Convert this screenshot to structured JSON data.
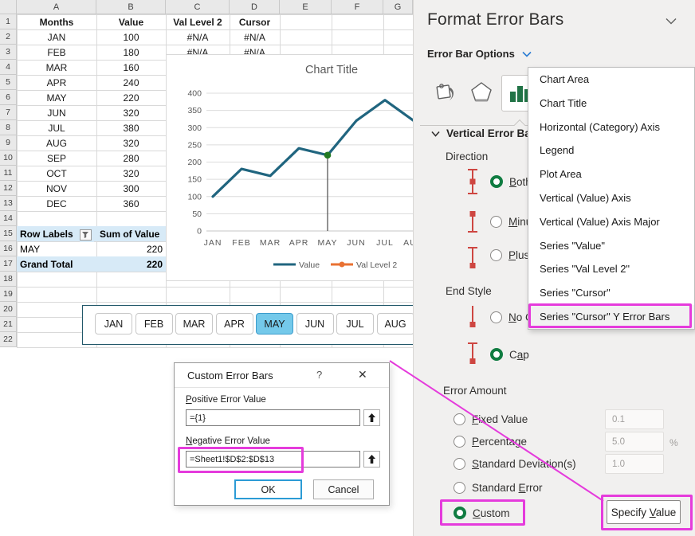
{
  "sheet": {
    "columns": [
      "A",
      "B",
      "C",
      "D",
      "E",
      "F",
      "G"
    ],
    "visible_row_count": 22,
    "table": {
      "headers": [
        "Months",
        "Value",
        "Val Level 2",
        "Cursor"
      ],
      "rows": [
        {
          "month": "JAN",
          "value": "100",
          "val2": "#N/A",
          "cursor": "#N/A"
        },
        {
          "month": "FEB",
          "value": "180",
          "val2": "#N/A",
          "cursor": "#N/A"
        },
        {
          "month": "MAR",
          "value": "160"
        },
        {
          "month": "APR",
          "value": "240"
        },
        {
          "month": "MAY",
          "value": "220"
        },
        {
          "month": "JUN",
          "value": "320"
        },
        {
          "month": "JUL",
          "value": "380"
        },
        {
          "month": "AUG",
          "value": "320"
        },
        {
          "month": "SEP",
          "value": "280"
        },
        {
          "month": "OCT",
          "value": "320"
        },
        {
          "month": "NOV",
          "value": "300"
        },
        {
          "month": "DEC",
          "value": "360"
        }
      ]
    },
    "pivot": {
      "col1_header": "Row Labels",
      "col2_header": "Sum of Value",
      "row_label": "MAY",
      "row_value": "220",
      "total_label": "Grand Total",
      "total_value": "220"
    }
  },
  "chart_data": {
    "type": "line",
    "title": "Chart Title",
    "categories": [
      "JAN",
      "FEB",
      "MAR",
      "APR",
      "MAY",
      "JUN",
      "JUL",
      "AUG"
    ],
    "series": [
      {
        "name": "Value",
        "color": "#20657F",
        "values": [
          100,
          180,
          160,
          240,
          220,
          320,
          380,
          320
        ]
      },
      {
        "name": "Val Level 2",
        "color": "#E97132",
        "values": []
      },
      {
        "name": "Cursor",
        "color": "#237A23",
        "points": [
          {
            "category": "MAY",
            "value": 220
          }
        ],
        "error_bar_to": 0
      }
    ],
    "ylim": [
      0,
      400
    ],
    "ytick_step": 50,
    "grid": true,
    "legend_position": "bottom"
  },
  "slicer": {
    "items": [
      "JAN",
      "FEB",
      "MAR",
      "APR",
      "MAY",
      "JUN",
      "JUL",
      "AUG"
    ],
    "selected": "MAY"
  },
  "dropdown": {
    "items": [
      "Chart Area",
      "Chart Title",
      "Horizontal (Category) Axis",
      "Legend",
      "Plot Area",
      "Vertical (Value) Axis",
      "Vertical (Value) Axis Major",
      "Series \"Value\"",
      "Series \"Val Level 2\"",
      "Series \"Cursor\"",
      "Series \"Cursor\" Y Error Bars"
    ],
    "highlighted_index": 10
  },
  "panel": {
    "title": "Format Error Bars",
    "options_label": "Error Bar Options",
    "section": "Vertical Error Bar",
    "direction_label": "Direction",
    "direction_options": [
      {
        "label": "Both",
        "accel": 0,
        "selected": true
      },
      {
        "label": "Minus",
        "accel": 0,
        "selected": false
      },
      {
        "label": "Plus",
        "accel": 0,
        "selected": false
      }
    ],
    "end_style_label": "End Style",
    "end_style_options": [
      {
        "label": "No Cap",
        "accel": 0,
        "selected": false
      },
      {
        "label": "Cap",
        "accel": 1,
        "selected": true
      }
    ],
    "error_amount_label": "Error Amount",
    "amount_options": [
      {
        "label": "Fixed Value",
        "accel": 0,
        "selected": false,
        "value": "0.1"
      },
      {
        "label": "Percentage",
        "accel": 0,
        "selected": false,
        "value": "5.0",
        "suffix": "%"
      },
      {
        "label": "Standard Deviation(s)",
        "accel": 0,
        "selected": false,
        "value": "1.0"
      },
      {
        "label": "Standard Error",
        "accel": 9,
        "selected": false
      },
      {
        "label": "Custom",
        "accel": 0,
        "selected": true
      }
    ],
    "specify_button": {
      "label": "Specify Value",
      "accel": 8
    }
  },
  "dialog": {
    "title": "Custom Error Bars",
    "help_icon": "?",
    "close_icon": "✕",
    "positive_label": {
      "label": "Positive Error Value",
      "accel": 0
    },
    "positive_value": "={1}",
    "negative_label": {
      "label": "Negative Error Value",
      "accel": 0
    },
    "negative_value": "=Sheet1!$D$2:$D$13",
    "ok_label": "OK",
    "cancel_label": "Cancel"
  }
}
